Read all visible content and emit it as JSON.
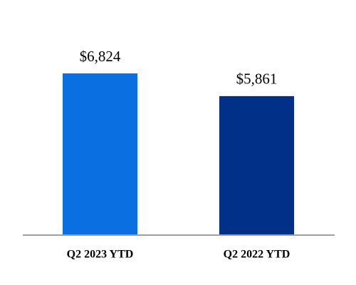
{
  "chart_data": {
    "type": "bar",
    "categories": [
      "Q2 2023 YTD",
      "Q2 2022 YTD"
    ],
    "values": [
      6824,
      5861
    ],
    "value_labels": [
      "$6,824",
      "$5,861"
    ],
    "colors": [
      "#0a6fe0",
      "#003087"
    ]
  }
}
